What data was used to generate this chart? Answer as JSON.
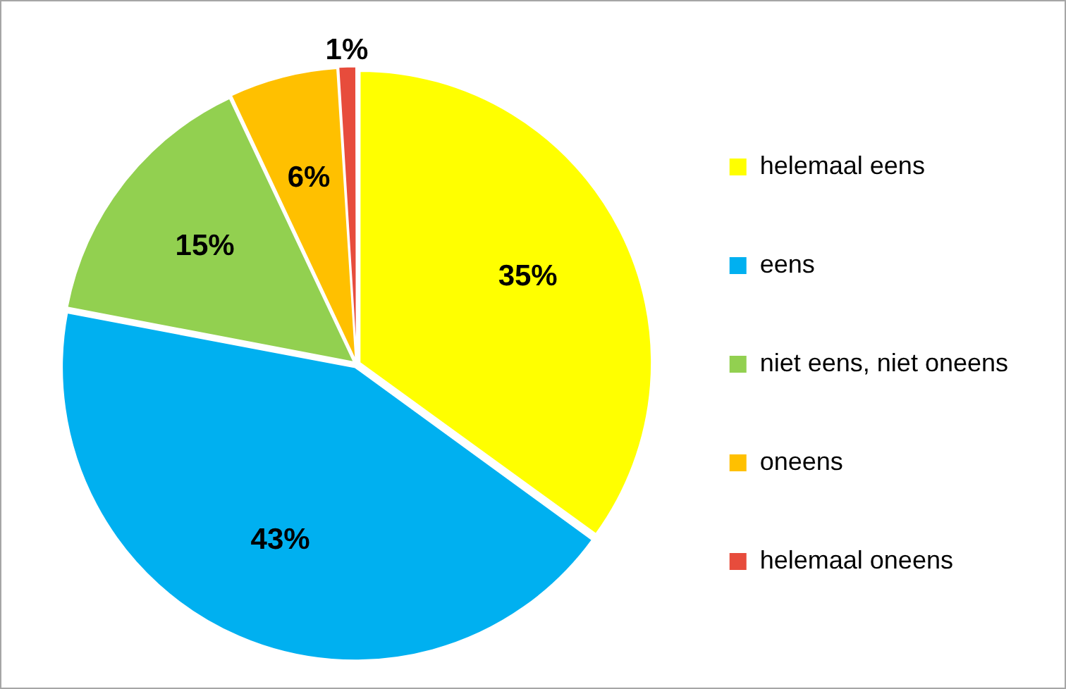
{
  "chart_data": {
    "type": "pie",
    "categories": [
      "helemaal eens",
      "eens",
      "niet eens, niet oneens",
      "oneens",
      "helemaal oneens"
    ],
    "values": [
      35,
      43,
      15,
      6,
      1
    ],
    "colors": [
      "#ffff00",
      "#00b0f0",
      "#92d050",
      "#ffc000",
      "#e74c3c"
    ],
    "value_labels": [
      "35%",
      "43%",
      "15%",
      "6%",
      "1%"
    ],
    "legend": "right"
  }
}
